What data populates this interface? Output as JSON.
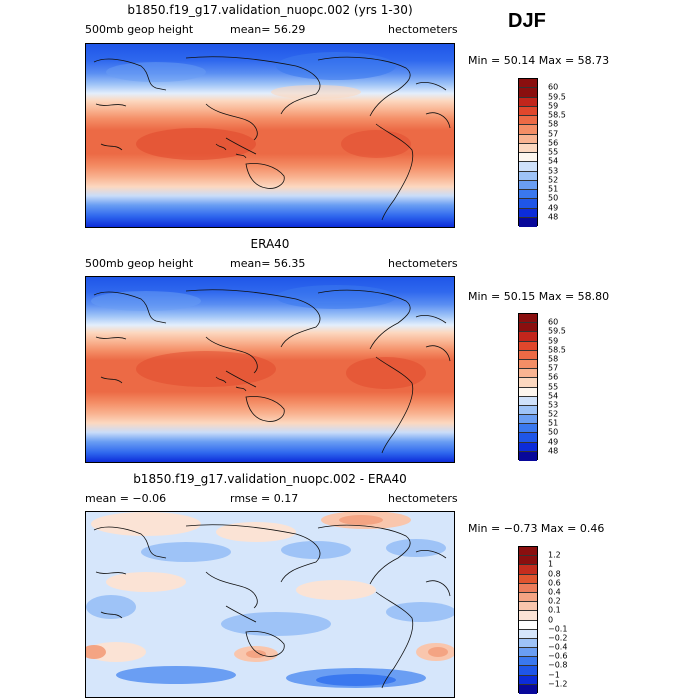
{
  "season": "DJF",
  "palettes": {
    "main": [
      "#08089a",
      "#0c2cd9",
      "#1f56e8",
      "#3a78ef",
      "#6a9ef3",
      "#9ec3f7",
      "#cfe1fa",
      "#fdf6ee",
      "#fcd8c0",
      "#f9b492",
      "#f48e66",
      "#ec6a45",
      "#e0472c",
      "#c2261c",
      "#8a0f0f"
    ],
    "diff": [
      "#08089a",
      "#0c2cd9",
      "#1f56e8",
      "#3a78ef",
      "#6a9ef3",
      "#9ec3f7",
      "#d6e6fb",
      "#ffffff",
      "#fbe3d5",
      "#f9c6ad",
      "#f4a483",
      "#ec7d5b",
      "#e0552f",
      "#c42d1e",
      "#8a0f0f"
    ]
  },
  "panels": [
    {
      "id": "model",
      "title": "b1850.f19_g17.validation_nuopc.002 (yrs 1-30)",
      "variable": "500mb geop height",
      "stat1": "mean=  56.29",
      "stat2": "",
      "units": "hectometers",
      "min_max": "Min =  50.14  Max =  58.73",
      "colorbar_labels": [
        "48",
        "49",
        "50",
        "51",
        "52",
        "53",
        "54",
        "55",
        "56",
        "57",
        "58",
        "58.5",
        "59",
        "59.5",
        "60"
      ]
    },
    {
      "id": "era40",
      "title": "ERA40",
      "variable": "500mb geop height",
      "stat1": "mean=  56.35",
      "stat2": "",
      "units": "hectometers",
      "min_max": "Min =  50.15  Max =  58.80",
      "colorbar_labels": [
        "48",
        "49",
        "50",
        "51",
        "52",
        "53",
        "54",
        "55",
        "56",
        "57",
        "58",
        "58.5",
        "59",
        "59.5",
        "60"
      ]
    },
    {
      "id": "diff",
      "title": "b1850.f19_g17.validation_nuopc.002 - ERA40",
      "variable": "",
      "stat1": "mean =  −0.06",
      "stat2": "rmse =   0.17",
      "units": "hectometers",
      "min_max": "Min =  −0.73  Max =   0.46",
      "colorbar_labels": [
        "−1.2",
        "−1",
        "−0.8",
        "−0.6",
        "−0.4",
        "−0.2",
        "−0.1",
        "0",
        "0.1",
        "0.2",
        "0.4",
        "0.6",
        "0.8",
        "1",
        "1.2"
      ]
    }
  ]
}
